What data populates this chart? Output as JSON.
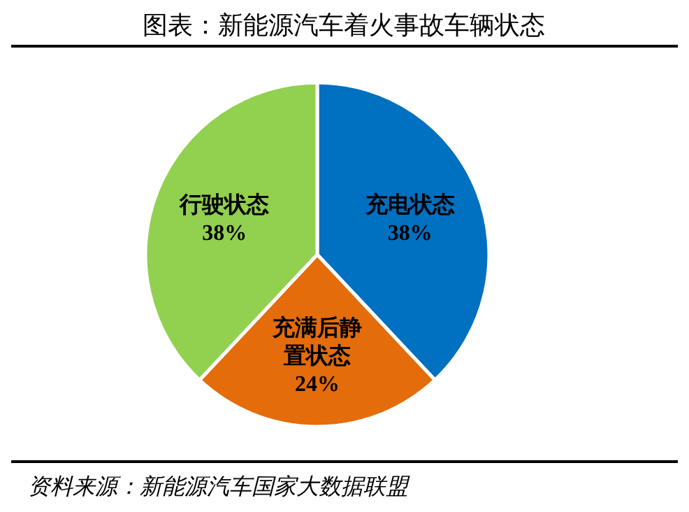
{
  "chart_data": {
    "type": "pie",
    "title": "图表：新能源汽车着火事故车辆状态",
    "categories": [
      "充电状态",
      "充满后静置状态",
      "行驶状态"
    ],
    "values": [
      38,
      24,
      38
    ],
    "value_labels": [
      "38%",
      "24%",
      "38%"
    ],
    "colors": [
      "#0070c0",
      "#e46c0a",
      "#92d050"
    ],
    "annotations": [
      "资料来源：新能源汽车国家大数据联盟"
    ]
  }
}
